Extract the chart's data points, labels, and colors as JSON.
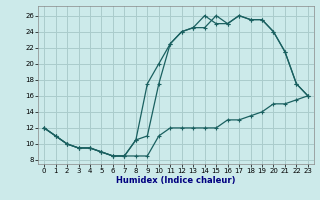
{
  "xlabel": "Humidex (Indice chaleur)",
  "bg_color": "#cceaea",
  "grid_color": "#aacccc",
  "line_color": "#1a6060",
  "xlim": [
    -0.5,
    23.5
  ],
  "ylim": [
    7.5,
    27.2
  ],
  "xticks": [
    0,
    1,
    2,
    3,
    4,
    5,
    6,
    7,
    8,
    9,
    10,
    11,
    12,
    13,
    14,
    15,
    16,
    17,
    18,
    19,
    20,
    21,
    22,
    23
  ],
  "yticks": [
    8,
    10,
    12,
    14,
    16,
    18,
    20,
    22,
    24,
    26
  ],
  "line1_x": [
    0,
    1,
    2,
    3,
    4,
    5,
    6,
    7,
    8,
    9,
    10,
    11,
    12,
    13,
    14,
    15,
    16,
    17,
    18,
    19,
    20,
    21,
    22,
    23
  ],
  "line1_y": [
    12,
    11,
    10,
    9.5,
    9.5,
    9,
    8.5,
    8.5,
    8.5,
    8.5,
    11,
    12,
    12,
    12,
    12,
    12,
    13,
    13,
    13.5,
    14,
    15,
    15,
    15.5,
    16
  ],
  "line2_x": [
    0,
    1,
    2,
    3,
    4,
    5,
    6,
    7,
    8,
    9,
    10,
    11,
    12,
    13,
    14,
    15,
    16,
    17,
    18,
    19,
    20,
    21,
    22,
    23
  ],
  "line2_y": [
    12,
    11,
    10,
    9.5,
    9.5,
    9,
    8.5,
    8.5,
    10.5,
    17.5,
    20,
    22.5,
    24,
    24.5,
    24.5,
    26,
    25,
    26,
    25.5,
    25.5,
    24,
    21.5,
    17.5,
    16
  ],
  "line3_x": [
    0,
    1,
    2,
    3,
    4,
    5,
    6,
    7,
    8,
    9,
    10,
    11,
    12,
    13,
    14,
    15,
    16,
    17,
    18,
    19,
    20,
    21,
    22,
    23
  ],
  "line3_y": [
    12,
    11,
    10,
    9.5,
    9.5,
    9,
    8.5,
    8.5,
    10.5,
    11,
    17.5,
    22.5,
    24,
    24.5,
    26,
    25,
    25,
    26,
    25.5,
    25.5,
    24,
    21.5,
    17.5,
    16
  ]
}
